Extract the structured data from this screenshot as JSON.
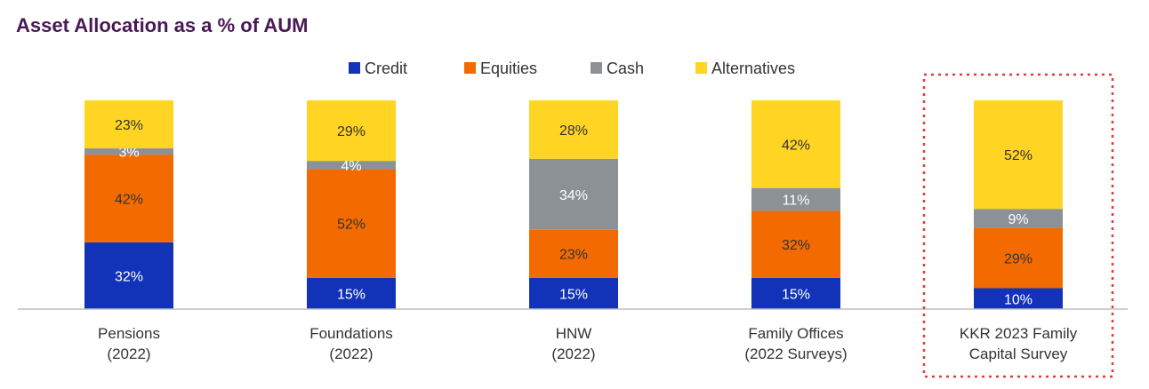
{
  "chart_data": {
    "type": "bar",
    "stacked": true,
    "title": "Asset Allocation as a % of AUM",
    "xlabel": "",
    "ylabel": "",
    "ylim": [
      0,
      100
    ],
    "grid": false,
    "legend_position": "top",
    "categories": [
      [
        "Pensions",
        "(2022)"
      ],
      [
        "Foundations",
        "(2022)"
      ],
      [
        "HNW",
        "(2022)"
      ],
      [
        "Family Offices",
        "(2022 Surveys)"
      ],
      [
        "KKR 2023 Family",
        "Capital Survey"
      ]
    ],
    "highlighted_category_index": 4,
    "highlight_color": "#e53935",
    "series": [
      {
        "name": "Credit",
        "color": "#1233b8",
        "label_color": "#ffffff",
        "values": [
          32,
          15,
          15,
          15,
          10
        ]
      },
      {
        "name": "Equities",
        "color": "#f26a00",
        "label_color": "#333333",
        "values": [
          42,
          52,
          23,
          32,
          29
        ]
      },
      {
        "name": "Cash",
        "color": "#8c9196",
        "label_color": "#ffffff",
        "values": [
          3,
          4,
          34,
          11,
          9
        ]
      },
      {
        "name": "Alternatives",
        "color": "#ffd423",
        "label_color": "#333333",
        "values": [
          23,
          29,
          28,
          42,
          52
        ]
      }
    ],
    "value_suffix": "%"
  }
}
